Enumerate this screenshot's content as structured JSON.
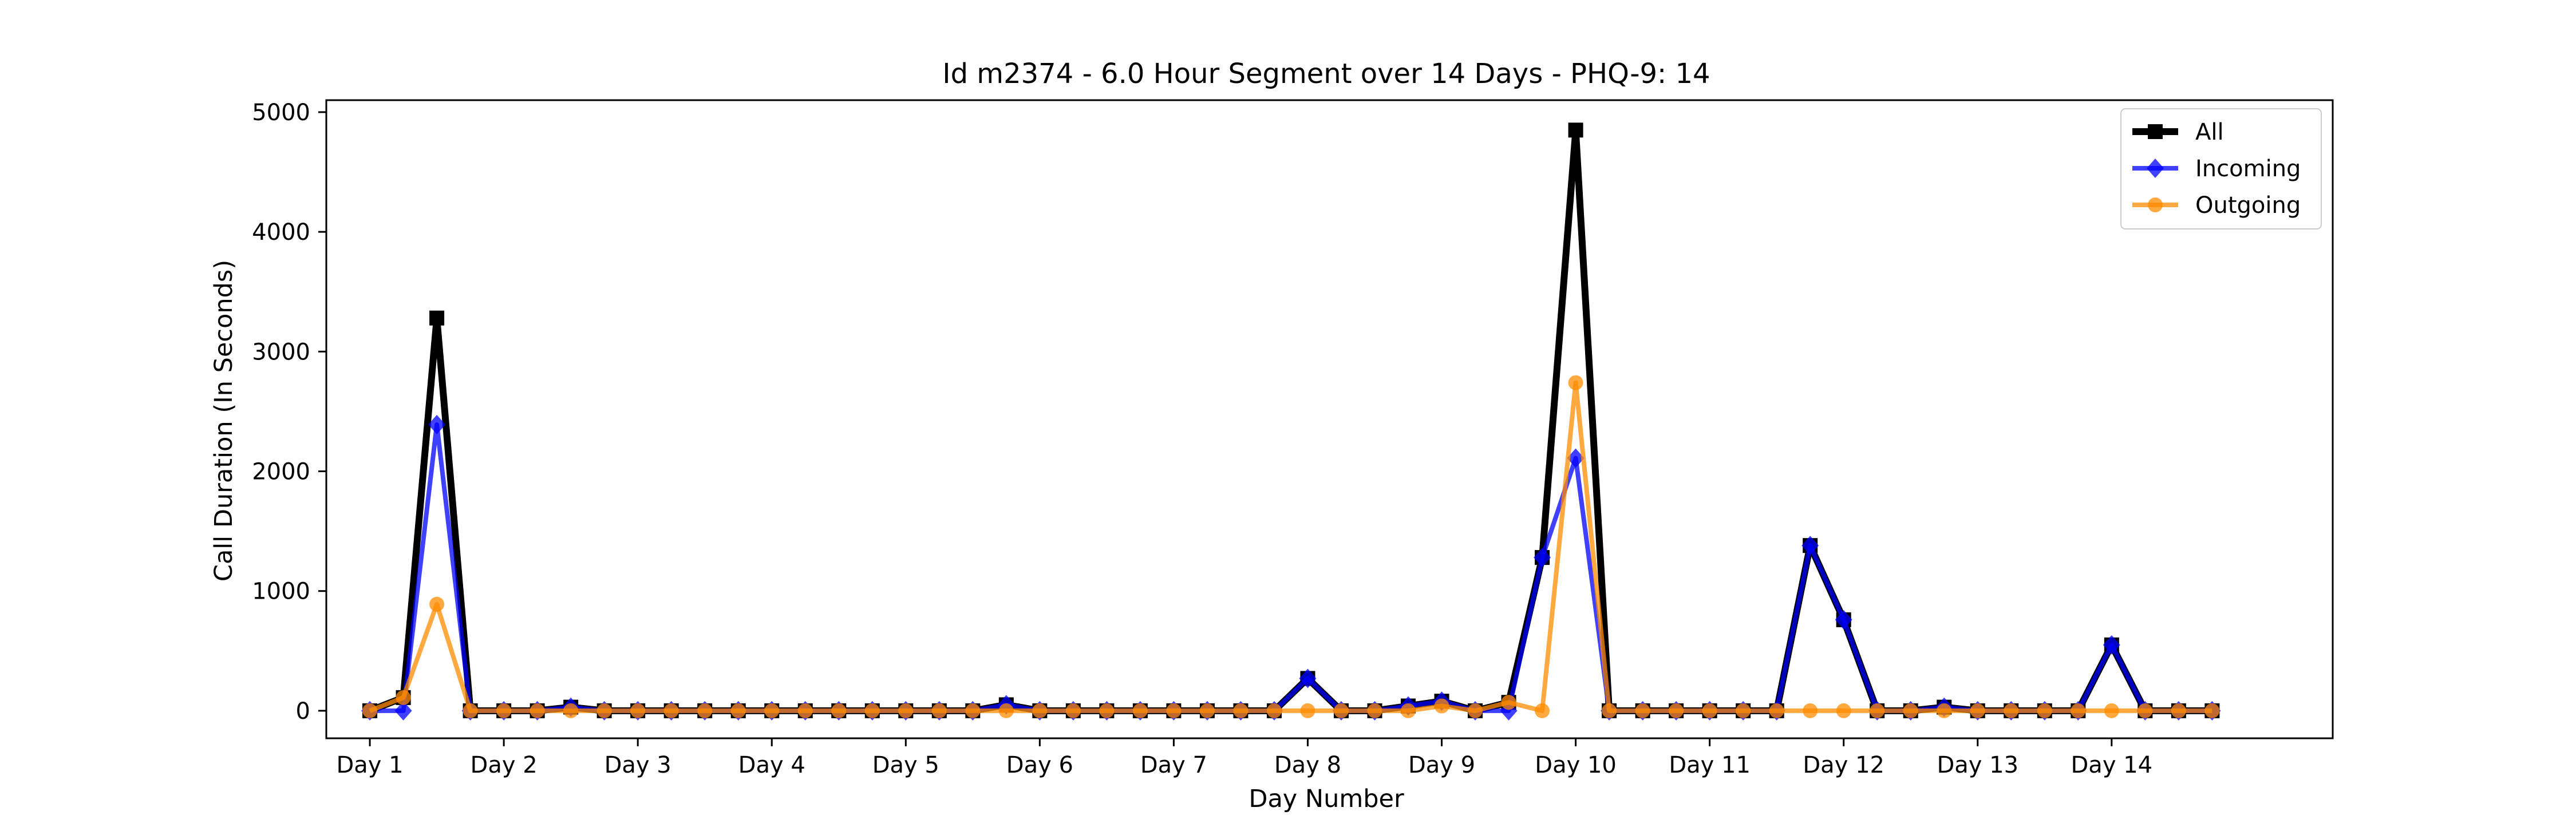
{
  "chart_data": {
    "type": "line",
    "title": "Id m2374 - 6.0 Hour Segment over 14 Days - PHQ-9: 14",
    "xlabel": "Day Number",
    "ylabel": "Call Duration (In Seconds)",
    "ylim": [
      -230,
      5100
    ],
    "xlim": [
      -1.3,
      58.6
    ],
    "yticks": [
      0,
      1000,
      2000,
      3000,
      4000,
      5000
    ],
    "xticks": [
      {
        "x": 0,
        "label": "Day 1"
      },
      {
        "x": 4,
        "label": "Day 2"
      },
      {
        "x": 8,
        "label": "Day 3"
      },
      {
        "x": 12,
        "label": "Day 4"
      },
      {
        "x": 16,
        "label": "Day 5"
      },
      {
        "x": 20,
        "label": "Day 6"
      },
      {
        "x": 24,
        "label": "Day 7"
      },
      {
        "x": 28,
        "label": "Day 8"
      },
      {
        "x": 32,
        "label": "Day 9"
      },
      {
        "x": 36,
        "label": "Day 10"
      },
      {
        "x": 40,
        "label": "Day 11"
      },
      {
        "x": 44,
        "label": "Day 12"
      },
      {
        "x": 48,
        "label": "Day 13"
      },
      {
        "x": 52,
        "label": "Day 14"
      }
    ],
    "legend_position": "top-right",
    "grid": false,
    "x": [
      0,
      1,
      2,
      3,
      4,
      5,
      6,
      7,
      8,
      9,
      10,
      11,
      12,
      13,
      14,
      15,
      16,
      17,
      18,
      19,
      20,
      21,
      22,
      23,
      24,
      25,
      26,
      27,
      28,
      29,
      30,
      31,
      32,
      33,
      34,
      35,
      36,
      37,
      38,
      39,
      40,
      41,
      42,
      43,
      44,
      45,
      46,
      47,
      48,
      49,
      50,
      51,
      52,
      53,
      54,
      55
    ],
    "series": [
      {
        "name": "All",
        "color": "#000000",
        "marker": "square",
        "values": [
          0,
          110,
          3280,
          0,
          0,
          0,
          30,
          0,
          0,
          0,
          0,
          0,
          0,
          0,
          0,
          0,
          0,
          0,
          0,
          50,
          0,
          0,
          0,
          0,
          0,
          0,
          0,
          0,
          270,
          0,
          0,
          40,
          80,
          0,
          70,
          1280,
          4850,
          0,
          0,
          0,
          0,
          0,
          0,
          1380,
          760,
          0,
          0,
          30,
          0,
          0,
          0,
          0,
          550,
          0,
          0,
          0
        ]
      },
      {
        "name": "Incoming",
        "color": "#0000ff",
        "marker": "diamond",
        "values": [
          0,
          0,
          2390,
          0,
          0,
          0,
          30,
          0,
          0,
          0,
          0,
          0,
          0,
          0,
          0,
          0,
          0,
          0,
          0,
          50,
          0,
          0,
          0,
          0,
          0,
          0,
          0,
          0,
          270,
          0,
          0,
          40,
          80,
          0,
          0,
          1280,
          2110,
          0,
          0,
          0,
          0,
          0,
          0,
          1380,
          760,
          0,
          0,
          30,
          0,
          0,
          0,
          0,
          550,
          0,
          0,
          0
        ]
      },
      {
        "name": "Outgoing",
        "color": "#ff8c00",
        "marker": "circle",
        "values": [
          0,
          110,
          890,
          0,
          0,
          0,
          0,
          0,
          0,
          0,
          0,
          0,
          0,
          0,
          0,
          0,
          0,
          0,
          0,
          0,
          0,
          0,
          0,
          0,
          0,
          0,
          0,
          0,
          0,
          0,
          0,
          0,
          40,
          0,
          70,
          0,
          2740,
          0,
          0,
          0,
          0,
          0,
          0,
          0,
          0,
          0,
          0,
          0,
          0,
          0,
          0,
          0,
          0,
          0,
          0,
          0
        ]
      }
    ]
  }
}
